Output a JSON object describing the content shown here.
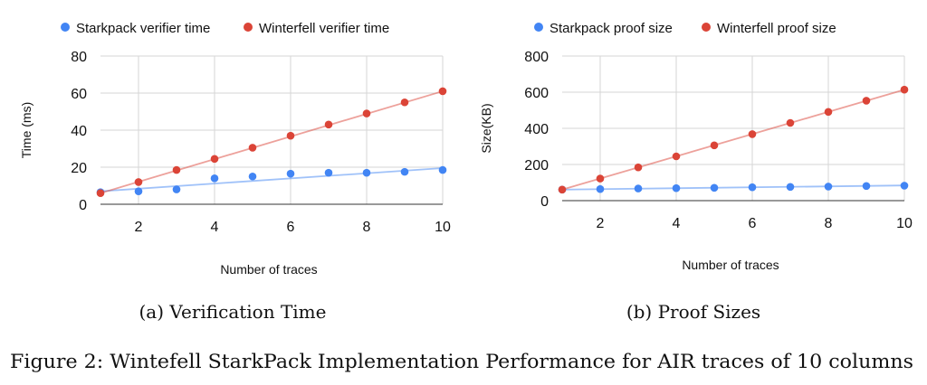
{
  "chart_data": [
    {
      "type": "scatter",
      "title": "",
      "xlabel": "Number of traces",
      "ylabel": "Time (ms)",
      "xlim": [
        1,
        10
      ],
      "ylim": [
        0,
        80
      ],
      "xticks": [
        2,
        4,
        6,
        8,
        10
      ],
      "yticks": [
        0,
        20,
        40,
        60,
        80
      ],
      "grid": true,
      "legend": "top",
      "sub_caption": "(a) Verification Time",
      "series": [
        {
          "name": "Starkpack verifier time",
          "color": "#4285f4",
          "x": [
            1,
            2,
            3,
            4,
            5,
            6,
            7,
            8,
            9,
            10
          ],
          "y": [
            6.5,
            7,
            8,
            14,
            15,
            16.5,
            17,
            17,
            17.5,
            18.5
          ],
          "trendline": [
            [
              1,
              7
            ],
            [
              10,
              19.5
            ]
          ]
        },
        {
          "name": "Winterfell verifier time",
          "color": "#db4437",
          "x": [
            1,
            2,
            3,
            4,
            5,
            6,
            7,
            8,
            9,
            10
          ],
          "y": [
            6,
            12,
            18.5,
            24.5,
            30.5,
            37,
            43,
            49,
            55,
            61
          ],
          "trendline": [
            [
              1,
              6
            ],
            [
              10,
              61
            ]
          ]
        }
      ]
    },
    {
      "type": "scatter",
      "title": "",
      "xlabel": "Number of traces",
      "ylabel": "Size(KB)",
      "xlim": [
        1,
        10
      ],
      "ylim": [
        0,
        800
      ],
      "xticks": [
        2,
        4,
        6,
        8,
        10
      ],
      "yticks": [
        0,
        200,
        400,
        600,
        800
      ],
      "grid": true,
      "legend": "top",
      "sub_caption": "(b) Proof Sizes",
      "series": [
        {
          "name": "Starkpack proof size",
          "color": "#4285f4",
          "x": [
            1,
            2,
            3,
            4,
            5,
            6,
            7,
            8,
            9,
            10
          ],
          "y": [
            61,
            64,
            67,
            69,
            71,
            74,
            76,
            78,
            81,
            83
          ],
          "trendline": [
            [
              1,
              61
            ],
            [
              10,
              84
            ]
          ]
        },
        {
          "name": "Winterfell proof size",
          "color": "#db4437",
          "x": [
            1,
            2,
            3,
            4,
            5,
            6,
            7,
            8,
            9,
            10
          ],
          "y": [
            61,
            122,
            184,
            245,
            306,
            368,
            430,
            491,
            553,
            614
          ],
          "trendline": [
            [
              1,
              61
            ],
            [
              10,
              614
            ]
          ]
        }
      ]
    }
  ],
  "figure_caption": "Figure 2: Wintefell StarkPack Implementation Performance for AIR traces of 10 columns"
}
